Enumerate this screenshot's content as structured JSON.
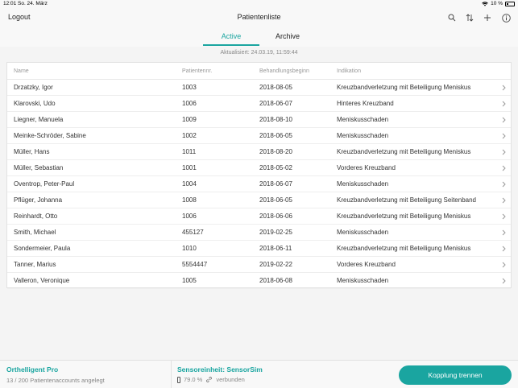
{
  "statusbar": {
    "time": "12:01",
    "date": "So. 24. März",
    "battery": "10 %"
  },
  "navbar": {
    "logout": "Logout",
    "title": "Patientenliste"
  },
  "tabs": {
    "active": "Active",
    "archive": "Archive"
  },
  "updated": "Aktualisiert: 24.03.19, 11:59:44",
  "table": {
    "headers": {
      "name": "Name",
      "nr": "Patientennr.",
      "date": "Behandlungsbeginn",
      "indication": "Indikation"
    },
    "rows": [
      {
        "name": "Drzatzky, Igor",
        "nr": "1003",
        "date": "2018-08-05",
        "indication": "Kreuzbandverletzung mit Beteiligung Meniskus"
      },
      {
        "name": "Klarovski, Udo",
        "nr": "1006",
        "date": "2018-06-07",
        "indication": "Hinteres Kreuzband"
      },
      {
        "name": "Liegner, Manuela",
        "nr": "1009",
        "date": "2018-08-10",
        "indication": "Meniskusschaden"
      },
      {
        "name": "Meinke-Schröder, Sabine",
        "nr": "1002",
        "date": "2018-06-05",
        "indication": "Meniskusschaden"
      },
      {
        "name": "Müller, Hans",
        "nr": "1011",
        "date": "2018-08-20",
        "indication": "Kreuzbandverletzung mit Beteiligung Meniskus"
      },
      {
        "name": "Müller, Sebastian",
        "nr": "1001",
        "date": "2018-05-02",
        "indication": "Vorderes Kreuzband"
      },
      {
        "name": "Oventrop, Peter-Paul",
        "nr": "1004",
        "date": "2018-06-07",
        "indication": "Meniskusschaden"
      },
      {
        "name": "Pflüger, Johanna",
        "nr": "1008",
        "date": "2018-06-05",
        "indication": "Kreuzbandverletzung mit Beteiligung Seitenband"
      },
      {
        "name": "Reinhardt, Otto",
        "nr": "1006",
        "date": "2018-06-06",
        "indication": "Kreuzbandverletzung mit Beteiligung Meniskus"
      },
      {
        "name": "Smith, Michael",
        "nr": "455127",
        "date": "2019-02-25",
        "indication": "Meniskusschaden"
      },
      {
        "name": "Sondermeier, Paula",
        "nr": "1010",
        "date": "2018-06-11",
        "indication": "Kreuzbandverletzung mit Beteiligung Meniskus"
      },
      {
        "name": "Tanner, Marius",
        "nr": "5554447",
        "date": "2019-02-22",
        "indication": "Vorderes Kreuzband"
      },
      {
        "name": "Valleron, Veronique",
        "nr": "1005",
        "date": "2018-06-08",
        "indication": "Meniskusschaden"
      }
    ]
  },
  "bottom": {
    "app_name": "Orthelligent Pro",
    "accounts": "13 / 200 Patientenaccounts angelegt",
    "sensor": "Sensoreinheit: SensorSim",
    "sensor_battery": "79.0 %",
    "sensor_status": "verbunden",
    "disconnect": "Kopplung trennen"
  },
  "colors": {
    "accent": "#1aa5a0"
  },
  "icons": {
    "search": "search-icon",
    "sort": "sort-icon",
    "add": "plus-icon",
    "info": "info-icon",
    "row": "chevron-right-icon"
  }
}
